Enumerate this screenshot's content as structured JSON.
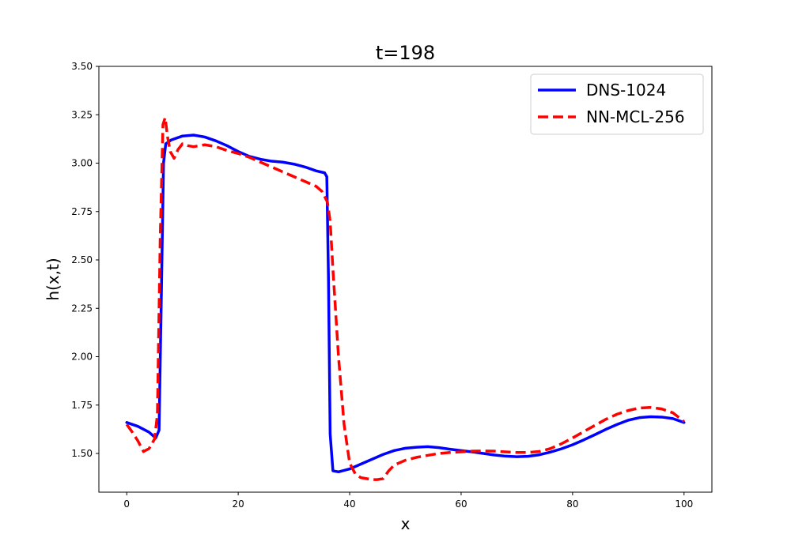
{
  "chart_data": {
    "type": "line",
    "title": "t=198",
    "xlabel": "x",
    "ylabel": "h(x,t)",
    "xlim": [
      -5,
      105
    ],
    "ylim": [
      1.3,
      3.5
    ],
    "xticks": [
      0,
      20,
      40,
      60,
      80,
      100
    ],
    "yticks": [
      1.5,
      1.75,
      2.0,
      2.25,
      2.5,
      2.75,
      3.0,
      3.25,
      3.5
    ],
    "xtick_labels": [
      "0",
      "20",
      "40",
      "60",
      "80",
      "100"
    ],
    "ytick_labels": [
      "1.50",
      "1.75",
      "2.00",
      "2.25",
      "2.50",
      "2.75",
      "3.00",
      "3.25",
      "3.50"
    ],
    "grid": false,
    "legend_position": "top-right",
    "series": [
      {
        "name": "DNS-1024",
        "color": "#0000ff",
        "style": "solid",
        "x": [
          0,
          2,
          4,
          5.2,
          5.8,
          6.2,
          6.6,
          7.0,
          8,
          10,
          12,
          14,
          16,
          18,
          20,
          22,
          24,
          26,
          28,
          30,
          32,
          34,
          35.5,
          35.9,
          36.2,
          36.5,
          37.0,
          38,
          40,
          42,
          44,
          46,
          48,
          50,
          52,
          54,
          56,
          58,
          60,
          62,
          64,
          66,
          68,
          70,
          72,
          74,
          76,
          78,
          80,
          82,
          84,
          86,
          88,
          90,
          92,
          94,
          96,
          98,
          100
        ],
        "y": [
          1.66,
          1.64,
          1.61,
          1.58,
          1.62,
          2.3,
          3.0,
          3.1,
          3.12,
          3.14,
          3.145,
          3.135,
          3.115,
          3.09,
          3.06,
          3.035,
          3.02,
          3.01,
          3.005,
          2.995,
          2.98,
          2.96,
          2.95,
          2.93,
          2.4,
          1.6,
          1.41,
          1.405,
          1.42,
          1.445,
          1.47,
          1.495,
          1.515,
          1.527,
          1.532,
          1.535,
          1.53,
          1.522,
          1.515,
          1.508,
          1.5,
          1.492,
          1.486,
          1.483,
          1.485,
          1.493,
          1.507,
          1.524,
          1.545,
          1.57,
          1.597,
          1.625,
          1.65,
          1.672,
          1.685,
          1.69,
          1.688,
          1.68,
          1.66
        ]
      },
      {
        "name": "NN-MCL-256",
        "color": "#ff0000",
        "style": "dashed",
        "x": [
          0,
          1,
          2,
          3,
          4,
          5,
          5.5,
          6,
          6.5,
          6.9,
          7.3,
          7.8,
          8.5,
          9.2,
          10,
          11,
          12,
          14,
          16,
          18,
          20,
          22,
          24,
          26,
          28,
          30,
          32,
          34,
          35,
          36,
          36.5,
          37,
          38,
          39,
          40,
          41,
          42,
          44,
          45,
          46,
          47,
          48,
          50,
          52,
          54,
          56,
          58,
          60,
          62,
          64,
          66,
          68,
          70,
          72,
          74,
          76,
          78,
          80,
          82,
          84,
          86,
          88,
          90,
          92,
          94,
          96,
          98,
          100
        ],
        "y": [
          1.65,
          1.61,
          1.565,
          1.51,
          1.525,
          1.575,
          1.7,
          2.6,
          3.2,
          3.235,
          3.14,
          3.06,
          3.025,
          3.07,
          3.1,
          3.09,
          3.085,
          3.095,
          3.085,
          3.065,
          3.05,
          3.03,
          3.005,
          2.98,
          2.955,
          2.93,
          2.905,
          2.88,
          2.855,
          2.8,
          2.7,
          2.45,
          2.0,
          1.65,
          1.45,
          1.395,
          1.375,
          1.365,
          1.365,
          1.37,
          1.41,
          1.44,
          1.465,
          1.48,
          1.49,
          1.5,
          1.505,
          1.508,
          1.512,
          1.513,
          1.512,
          1.508,
          1.505,
          1.505,
          1.51,
          1.525,
          1.55,
          1.58,
          1.613,
          1.645,
          1.677,
          1.703,
          1.722,
          1.735,
          1.738,
          1.73,
          1.71,
          1.665
        ]
      }
    ]
  }
}
